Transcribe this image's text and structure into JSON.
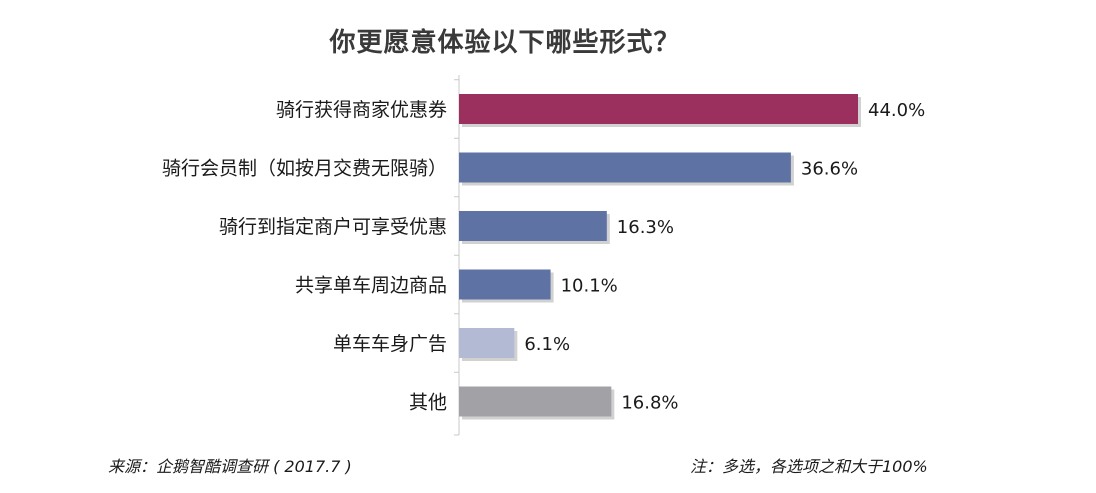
{
  "chart_data": {
    "type": "bar",
    "orientation": "horizontal",
    "title": "你更愿意体验以下哪些形式？",
    "categories": [
      "骑行获得商家优惠券",
      "骑行会员制（如按月交费无限骑）",
      "骑行到指定商户可享受优惠",
      "共享单车周边商品",
      "单车车身广告",
      "其他"
    ],
    "values": [
      44.0,
      36.6,
      16.3,
      10.1,
      6.1,
      16.8
    ],
    "value_labels": [
      "44.0%",
      "36.6%",
      "16.3%",
      "10.1%",
      "6.1%",
      "16.8%"
    ],
    "colors": [
      "#9b2f5e",
      "#5e73a3",
      "#5e73a3",
      "#5e73a3",
      "#b3bad3",
      "#a2a2a6"
    ],
    "unit": "%",
    "xlim": [
      0,
      44.0
    ],
    "grid": false,
    "legend": "none"
  },
  "footer": {
    "source": "来源：企鹅智酷调查研 ( 2017.7 )",
    "note": "注：多选，各选项之和大于100%"
  }
}
